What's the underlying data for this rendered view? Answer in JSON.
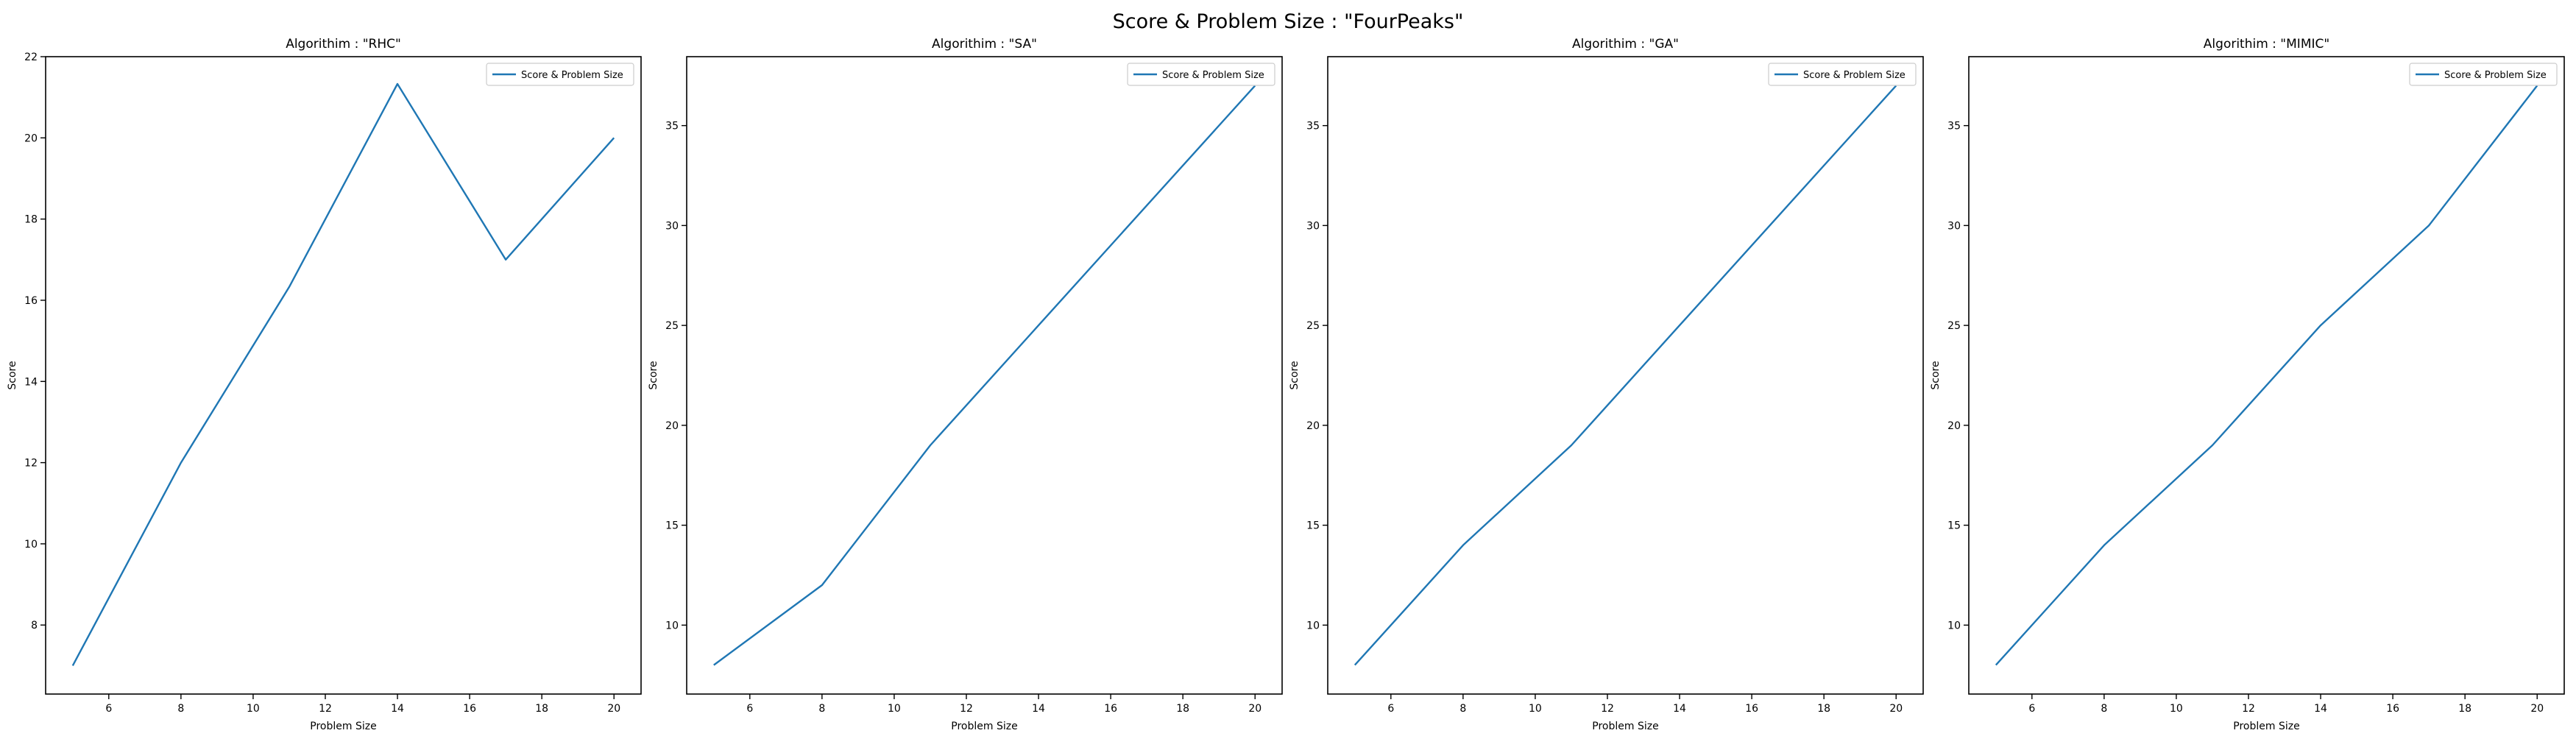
{
  "suptitle": "Score & Problem Size : \"FourPeaks\"",
  "colors": {
    "line": "#1f77b4",
    "axis": "#000000",
    "legend_border": "#cccccc"
  },
  "chart_data": [
    {
      "type": "line",
      "title": "Algorithim : \"RHC\"",
      "xlabel": "Problem Size",
      "ylabel": "Score",
      "x": [
        5,
        8,
        11,
        14,
        17,
        20
      ],
      "series": [
        {
          "name": "Score & Problem Size",
          "values": [
            7,
            12,
            16.33,
            21.33,
            17,
            20
          ]
        }
      ],
      "xlim": [
        4.25,
        20.75
      ],
      "ylim": [
        6.3,
        22.0
      ],
      "xticks": [
        6,
        8,
        10,
        12,
        14,
        16,
        18,
        20
      ],
      "yticks": [
        8,
        10,
        12,
        14,
        16,
        18,
        20,
        22
      ],
      "legend": "upper right",
      "grid": false
    },
    {
      "type": "line",
      "title": "Algorithim : \"SA\"",
      "xlabel": "Problem Size",
      "ylabel": "Score",
      "x": [
        5,
        8,
        11,
        14,
        17,
        20
      ],
      "series": [
        {
          "name": "Score & Problem Size",
          "values": [
            8,
            12,
            19,
            25,
            31,
            37
          ]
        }
      ],
      "xlim": [
        4.25,
        20.75
      ],
      "ylim": [
        6.55,
        38.45
      ],
      "xticks": [
        6,
        8,
        10,
        12,
        14,
        16,
        18,
        20
      ],
      "yticks": [
        10,
        15,
        20,
        25,
        30,
        35
      ],
      "legend": "upper right",
      "grid": false
    },
    {
      "type": "line",
      "title": "Algorithim : \"GA\"",
      "xlabel": "Problem Size",
      "ylabel": "Score",
      "x": [
        5,
        8,
        11,
        14,
        17,
        20
      ],
      "series": [
        {
          "name": "Score & Problem Size",
          "values": [
            8,
            14,
            19,
            25,
            31,
            37
          ]
        }
      ],
      "xlim": [
        4.25,
        20.75
      ],
      "ylim": [
        6.55,
        38.45
      ],
      "xticks": [
        6,
        8,
        10,
        12,
        14,
        16,
        18,
        20
      ],
      "yticks": [
        10,
        15,
        20,
        25,
        30,
        35
      ],
      "legend": "upper right",
      "grid": false
    },
    {
      "type": "line",
      "title": "Algorithim : \"MIMIC\"",
      "xlabel": "Problem Size",
      "ylabel": "Score",
      "x": [
        5,
        8,
        11,
        14,
        17,
        20
      ],
      "series": [
        {
          "name": "Score & Problem Size",
          "values": [
            8,
            14,
            19,
            25,
            30,
            37
          ]
        }
      ],
      "xlim": [
        4.25,
        20.75
      ],
      "ylim": [
        6.55,
        38.45
      ],
      "xticks": [
        6,
        8,
        10,
        12,
        14,
        16,
        18,
        20
      ],
      "yticks": [
        10,
        15,
        20,
        25,
        30,
        35
      ],
      "legend": "upper right",
      "grid": false
    }
  ]
}
